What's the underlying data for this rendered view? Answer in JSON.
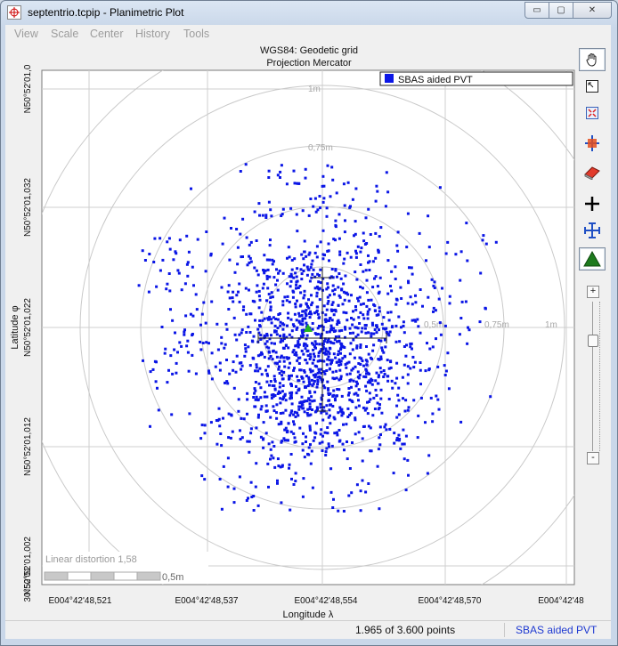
{
  "window": {
    "title": "septentrio.tcpip - Planimetric Plot",
    "minimize_symbol": "▭",
    "restore_symbol": "▢",
    "close_symbol": "✕"
  },
  "menu": [
    "View",
    "Scale",
    "Center",
    "History",
    "Tools"
  ],
  "plot": {
    "title": "WGS84: Geodetic grid",
    "subtitle": "Projection Mercator",
    "legend": {
      "label": "SBAS aided PVT",
      "color": "#0b16e6"
    },
    "x_axis": {
      "label": "Longitude λ",
      "ticks": [
        "E004°42'48,521",
        "E004°42'48,537",
        "E004°42'48,554",
        "E004°42'48,570",
        "E004°42'48"
      ]
    },
    "y_axis": {
      "label": "Latitude φ",
      "ticks": [
        "N50°52'01,0",
        "N50°52'01,032",
        "N50°52'01,022",
        "N50°52'01,012",
        "N50°52'01,002",
        "30°52'01"
      ]
    },
    "ring_labels": {
      "top_1m": "1m",
      "top_075m": "0,75m",
      "right_1m": "1m",
      "right_075m": "0,75m",
      "right_05m": "0,5m"
    },
    "linear_distortion": "Linear distortion 1,58",
    "scale_bar_label": "0,5m"
  },
  "toolbar": [
    {
      "name": "pan-hand-icon"
    },
    {
      "name": "zoom-window-icon"
    },
    {
      "name": "zoom-fit-icon"
    },
    {
      "name": "center-on-point-icon"
    },
    {
      "name": "eraser-icon"
    },
    {
      "name": "crosshair-icon"
    },
    {
      "name": "std-deviation-icon"
    },
    {
      "name": "reference-marker-icon"
    }
  ],
  "zoom": {
    "plus": "+",
    "minus": "-",
    "level": 0.23
  },
  "status": {
    "points": "1.965 of 3.600 points",
    "dataset": "SBAS aided PVT"
  }
}
